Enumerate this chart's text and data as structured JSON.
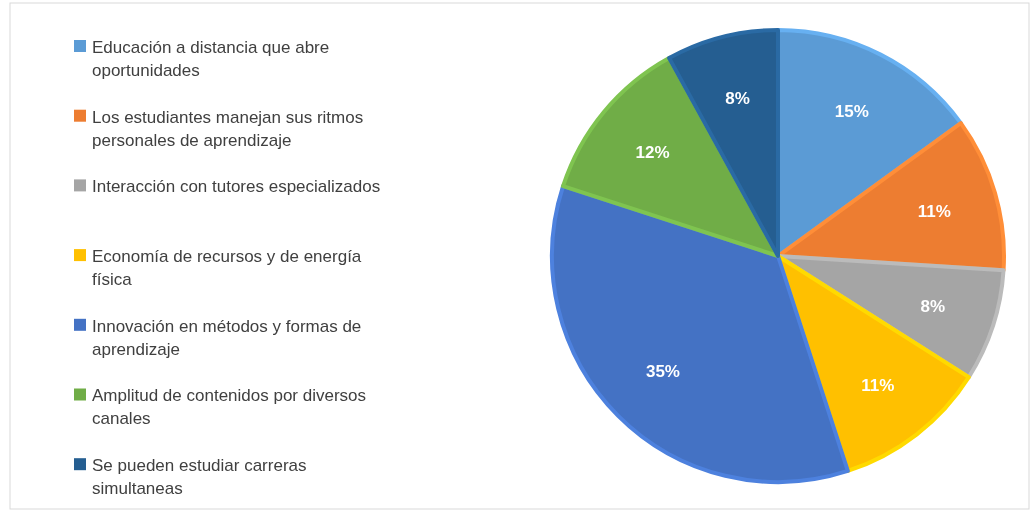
{
  "chart_data": {
    "type": "pie",
    "categories": [
      "Educación a distancia que abre oportunidades",
      "Los estudiantes manejan sus ritmos personales de aprendizaje",
      "Interacción con tutores especializados",
      "Economía de recursos y de energía física",
      "Innovación en métodos y formas de aprendizaje",
      "Amplitud de contenidos por diversos canales",
      "Se pueden estudiar carreras simultaneas"
    ],
    "values": [
      15,
      11,
      8,
      11,
      35,
      12,
      8
    ],
    "colors": [
      "#5b9bd5",
      "#ed7d31",
      "#a5a5a5",
      "#ffc000",
      "#4472c4",
      "#70ad47",
      "#255e91"
    ],
    "value_labels": [
      "15%",
      "11%",
      "8%",
      "11%",
      "35%",
      "12%",
      "8%"
    ],
    "legend": "left"
  }
}
